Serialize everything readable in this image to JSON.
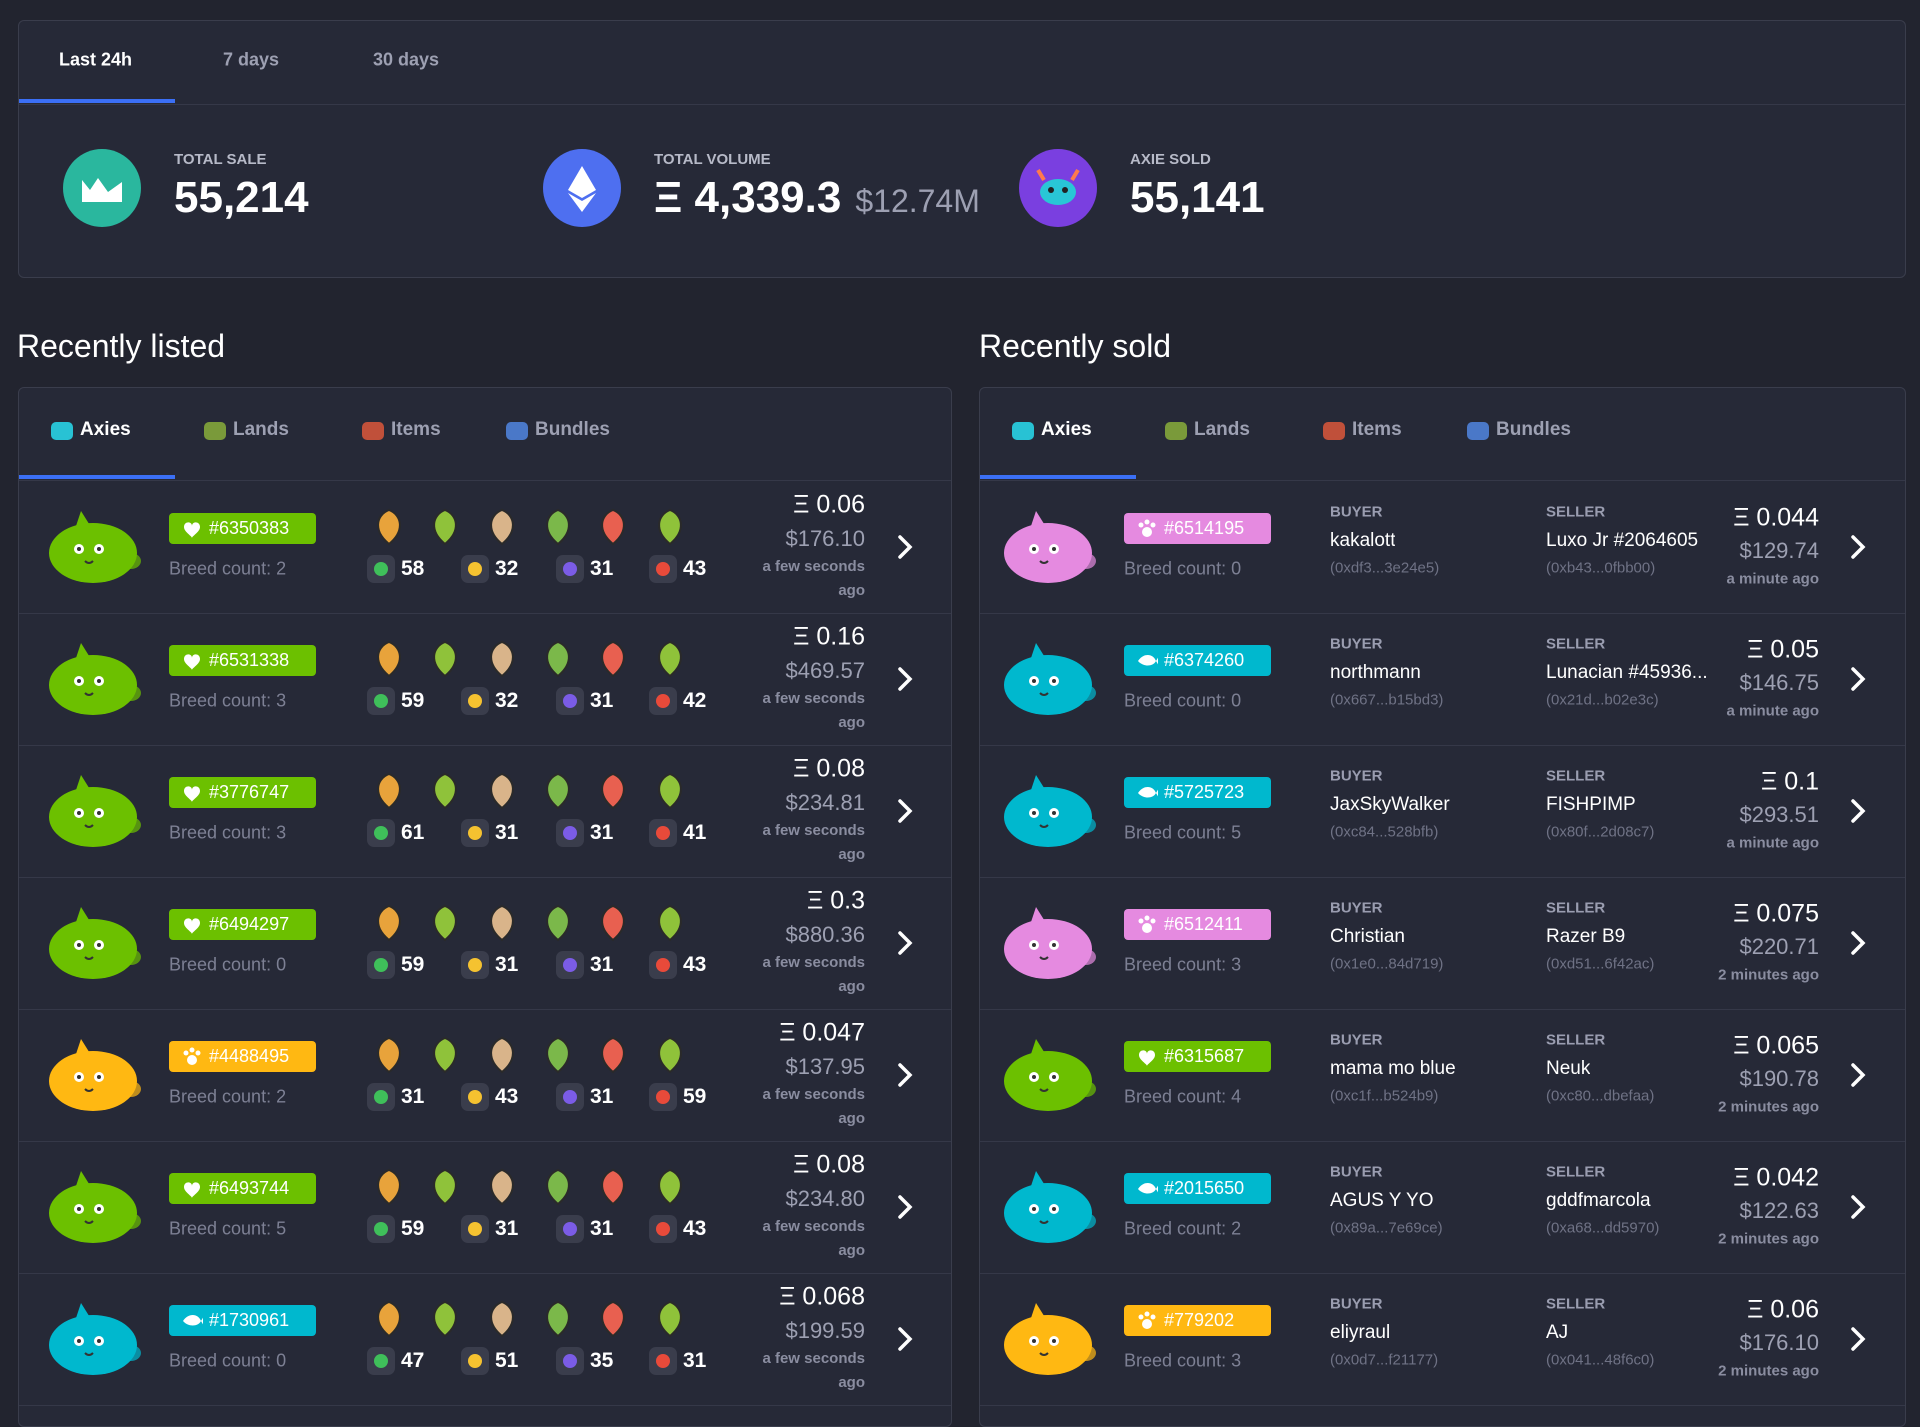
{
  "tabs": [
    "Last 24h",
    "7 days",
    "30 days"
  ],
  "stats": [
    {
      "label": "TOTAL SALE",
      "value": "55,214",
      "color": "#2ab79e"
    },
    {
      "label": "TOTAL VOLUME",
      "value": "Ξ 4,339.3",
      "usd": "$12.74M",
      "color": "#4e6ff0"
    },
    {
      "label": "AXIE SOLD",
      "value": "55,141",
      "color": "#7a3fe0"
    }
  ],
  "listed": {
    "title": "Recently listed",
    "tabs": [
      "Axies",
      "Lands",
      "Items",
      "Bundles"
    ],
    "rows": [
      {
        "id": "#6350383",
        "color": "#6cc000",
        "breed": "Breed count: 2",
        "stats": [
          58,
          32,
          31,
          43
        ],
        "eth": "Ξ 0.06",
        "usd": "$176.10",
        "time": "a few seconds ago"
      },
      {
        "id": "#6531338",
        "color": "#6cc000",
        "breed": "Breed count: 3",
        "stats": [
          59,
          32,
          31,
          42
        ],
        "eth": "Ξ 0.16",
        "usd": "$469.57",
        "time": "a few seconds ago"
      },
      {
        "id": "#3776747",
        "color": "#6cc000",
        "breed": "Breed count: 3",
        "stats": [
          61,
          31,
          31,
          41
        ],
        "eth": "Ξ 0.08",
        "usd": "$234.81",
        "time": "a few seconds ago"
      },
      {
        "id": "#6494297",
        "color": "#6cc000",
        "breed": "Breed count: 0",
        "stats": [
          59,
          31,
          31,
          43
        ],
        "eth": "Ξ 0.3",
        "usd": "$880.36",
        "time": "a few seconds ago"
      },
      {
        "id": "#4488495",
        "color": "#ffb812",
        "breed": "Breed count: 2",
        "stats": [
          31,
          43,
          31,
          59
        ],
        "eth": "Ξ 0.047",
        "usd": "$137.95",
        "time": "a few seconds ago"
      },
      {
        "id": "#6493744",
        "color": "#6cc000",
        "breed": "Breed count: 5",
        "stats": [
          59,
          31,
          31,
          43
        ],
        "eth": "Ξ 0.08",
        "usd": "$234.80",
        "time": "a few seconds ago"
      },
      {
        "id": "#1730961",
        "color": "#00b8ce",
        "breed": "Breed count: 0",
        "stats": [
          47,
          51,
          35,
          31
        ],
        "eth": "Ξ 0.068",
        "usd": "$199.59",
        "time": "a few seconds ago"
      }
    ]
  },
  "sold": {
    "title": "Recently sold",
    "tabs": [
      "Axies",
      "Lands",
      "Items",
      "Bundles"
    ],
    "buyer_label": "BUYER",
    "seller_label": "SELLER",
    "rows": [
      {
        "id": "#6514195",
        "color": "#e58ae0",
        "breed": "Breed count: 0",
        "buyer": "kakalott",
        "buyer_addr": "(0xdf3...3e24e5)",
        "seller": "Luxo Jr #2064605",
        "seller_addr": "(0xb43...0fbb00)",
        "eth": "Ξ 0.044",
        "usd": "$129.74",
        "time": "a minute ago"
      },
      {
        "id": "#6374260",
        "color": "#00b8ce",
        "breed": "Breed count: 0",
        "buyer": "northmann",
        "buyer_addr": "(0x667...b15bd3)",
        "seller": "Lunacian #45936...",
        "seller_addr": "(0x21d...b02e3c)",
        "eth": "Ξ 0.05",
        "usd": "$146.75",
        "time": "a minute ago"
      },
      {
        "id": "#5725723",
        "color": "#00b8ce",
        "breed": "Breed count: 5",
        "buyer": "JaxSkyWalker",
        "buyer_addr": "(0xc84...528bfb)",
        "seller": "FISHPIMP",
        "seller_addr": "(0x80f...2d08c7)",
        "eth": "Ξ 0.1",
        "usd": "$293.51",
        "time": "a minute ago"
      },
      {
        "id": "#6512411",
        "color": "#e58ae0",
        "breed": "Breed count: 3",
        "buyer": "Christian",
        "buyer_addr": "(0x1e0...84d719)",
        "seller": "Razer B9",
        "seller_addr": "(0xd51...6f42ac)",
        "eth": "Ξ 0.075",
        "usd": "$220.71",
        "time": "2 minutes ago"
      },
      {
        "id": "#6315687",
        "color": "#6cc000",
        "breed": "Breed count: 4",
        "buyer": "mama mo blue",
        "buyer_addr": "(0xc1f...b524b9)",
        "seller": "Neuk",
        "seller_addr": "(0xc80...dbefaa)",
        "eth": "Ξ 0.065",
        "usd": "$190.78",
        "time": "2 minutes ago"
      },
      {
        "id": "#2015650",
        "color": "#00b8ce",
        "breed": "Breed count: 2",
        "buyer": "AGUS Y YO",
        "buyer_addr": "(0x89a...7e69ce)",
        "seller": "gddfmarcola",
        "seller_addr": "(0xa68...dd5970)",
        "eth": "Ξ 0.042",
        "usd": "$122.63",
        "time": "2 minutes ago"
      },
      {
        "id": "#779202",
        "color": "#ffb812",
        "breed": "Breed count: 3",
        "buyer": "eliyraul",
        "buyer_addr": "(0x0d7...f21177)",
        "seller": "AJ",
        "seller_addr": "(0x041...48f6c0)",
        "eth": "Ξ 0.06",
        "usd": "$176.10",
        "time": "2 minutes ago"
      }
    ]
  }
}
